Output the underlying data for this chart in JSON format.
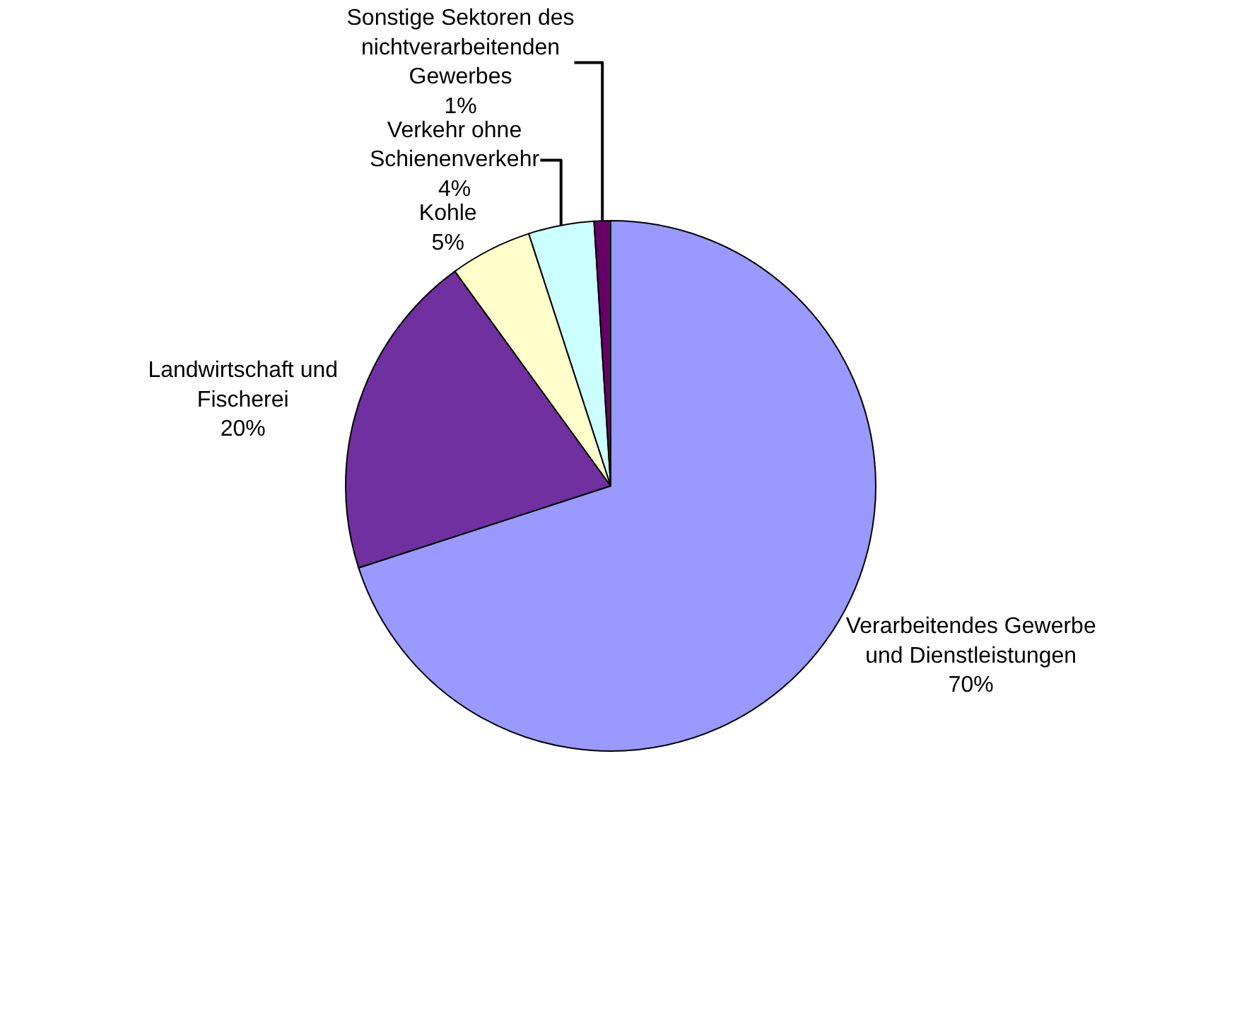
{
  "chart_data": {
    "type": "pie",
    "categories": [
      "Verarbeitendes Gewerbe und Dienstleistungen",
      "Landwirtschaft und Fischerei",
      "Kohle",
      "Verkehr ohne Schienenverkehr",
      "Sonstige Sektoren des nichtverarbeitenden Gewerbes"
    ],
    "values": [
      70,
      20,
      5,
      4,
      1
    ],
    "value_labels": [
      "70%",
      "20%",
      "5%",
      "4%",
      "1%"
    ],
    "colors": [
      "#9999ff",
      "#7030a0",
      "#ffffcc",
      "#ccffff",
      "#660066"
    ],
    "legend": false
  }
}
